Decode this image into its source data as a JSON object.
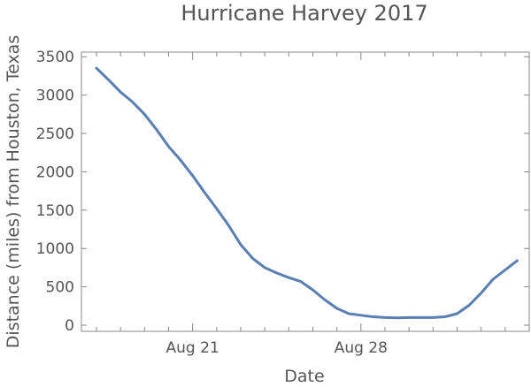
{
  "chart_data": {
    "type": "line",
    "title": "Hurricane Harvey 2017",
    "xlabel": "Date",
    "ylabel": "Distance (miles) from Houston, Texas",
    "x_tick_labels": [
      "Aug 21",
      "Aug 28"
    ],
    "y_ticks": [
      0,
      500,
      1000,
      1500,
      2000,
      2500,
      3000,
      3500
    ],
    "ylim": [
      -80,
      3560
    ],
    "xlim": [
      "2017-08-16T09:00",
      "2017-09-04T00:00"
    ],
    "grid": false,
    "line_color": "#5a7fb4",
    "series": [
      {
        "x": [
          "2017-08-17T00:00",
          "2017-08-17T12:00",
          "2017-08-18T00:00",
          "2017-08-18T12:00",
          "2017-08-19T00:00",
          "2017-08-19T12:00",
          "2017-08-20T00:00",
          "2017-08-20T12:00",
          "2017-08-21T00:00",
          "2017-08-21T12:00",
          "2017-08-22T00:00",
          "2017-08-22T12:00",
          "2017-08-23T00:00",
          "2017-08-23T12:00",
          "2017-08-24T00:00",
          "2017-08-24T12:00",
          "2017-08-25T00:00",
          "2017-08-25T12:00",
          "2017-08-26T00:00",
          "2017-08-26T12:00",
          "2017-08-27T00:00",
          "2017-08-27T12:00",
          "2017-08-28T00:00",
          "2017-08-28T12:00",
          "2017-08-29T00:00",
          "2017-08-29T12:00",
          "2017-08-30T00:00",
          "2017-08-30T12:00",
          "2017-08-31T00:00",
          "2017-08-31T12:00",
          "2017-09-01T00:00",
          "2017-09-01T12:00",
          "2017-09-02T00:00",
          "2017-09-02T12:00",
          "2017-09-03T00:00",
          "2017-09-03T12:00"
        ],
        "y": [
          3350,
          3200,
          3040,
          2910,
          2750,
          2550,
          2330,
          2150,
          1950,
          1730,
          1520,
          1300,
          1050,
          870,
          750,
          680,
          620,
          570,
          460,
          330,
          220,
          150,
          130,
          110,
          100,
          95,
          100,
          100,
          100,
          110,
          150,
          260,
          420,
          600,
          720,
          840
        ]
      }
    ]
  }
}
